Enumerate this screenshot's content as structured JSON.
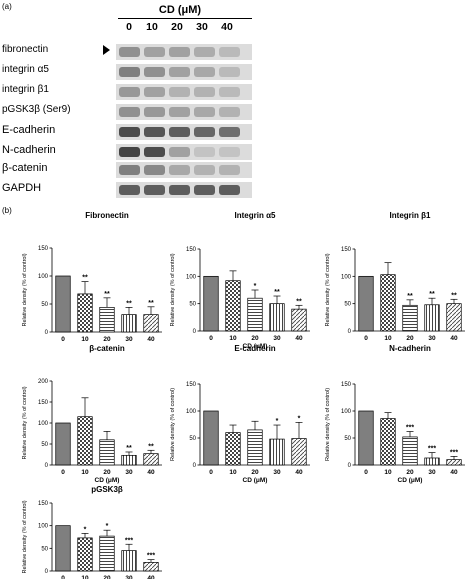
{
  "panel_a_label": "(a)",
  "panel_b_label": "(b)",
  "blot": {
    "title": "CD (μM)",
    "concentrations": [
      "0",
      "10",
      "20",
      "30",
      "40"
    ],
    "rows": [
      {
        "label": "fibronectin",
        "arrow": true,
        "intensities": [
          0.45,
          0.35,
          0.35,
          0.28,
          0.2
        ]
      },
      {
        "label": "integrin α5",
        "arrow": false,
        "intensities": [
          0.55,
          0.45,
          0.35,
          0.3,
          0.2
        ]
      },
      {
        "label": "integrin β1",
        "arrow": false,
        "intensities": [
          0.4,
          0.35,
          0.25,
          0.25,
          0.2
        ]
      },
      {
        "label": "pGSK3β (Ser9)",
        "arrow": false,
        "intensities": [
          0.45,
          0.4,
          0.35,
          0.3,
          0.25
        ]
      },
      {
        "label": "E-cadherin",
        "arrow": false,
        "intensities": [
          0.85,
          0.8,
          0.75,
          0.7,
          0.65
        ]
      },
      {
        "label": "N-cadherin",
        "arrow": false,
        "intensities": [
          0.9,
          0.85,
          0.35,
          0.15,
          0.15
        ]
      },
      {
        "label": "β-catenin",
        "arrow": false,
        "intensities": [
          0.55,
          0.5,
          0.3,
          0.25,
          0.25
        ]
      },
      {
        "label": "GAPDH",
        "arrow": false,
        "intensities": [
          0.75,
          0.75,
          0.75,
          0.75,
          0.75
        ]
      }
    ]
  },
  "chart_data": [
    {
      "type": "bar",
      "title": "Fibronectin",
      "categories": [
        "0",
        "10",
        "20",
        "30",
        "40"
      ],
      "values": [
        100,
        68,
        44,
        31,
        31
      ],
      "errors": [
        0,
        22,
        17,
        13,
        14
      ],
      "significance": [
        "",
        "**",
        "**",
        "**",
        "**"
      ],
      "xlabel": "",
      "ylabel": "Relative density (% of control)",
      "ylim": [
        0,
        150
      ],
      "yticks": [
        0,
        50,
        100,
        150
      ]
    },
    {
      "type": "bar",
      "title": "Integrin α5",
      "categories": [
        "0",
        "10",
        "20",
        "30",
        "40"
      ],
      "values": [
        100,
        92,
        60,
        50,
        40
      ],
      "errors": [
        0,
        18,
        15,
        14,
        7
      ],
      "significance": [
        "",
        "",
        "*",
        "**",
        "**"
      ],
      "xlabel": "CD (μM)",
      "ylabel": "Relative density (% of control)",
      "ylim": [
        0,
        150
      ],
      "yticks": [
        0,
        50,
        100,
        150
      ]
    },
    {
      "type": "bar",
      "title": "Integrin β1",
      "categories": [
        "0",
        "10",
        "20",
        "30",
        "40"
      ],
      "values": [
        100,
        103,
        47,
        48,
        50
      ],
      "errors": [
        0,
        22,
        10,
        12,
        8
      ],
      "significance": [
        "",
        "",
        "**",
        "**",
        "**"
      ],
      "xlabel": "",
      "ylabel": "Relative density (% of control)",
      "ylim": [
        0,
        150
      ],
      "yticks": [
        0,
        50,
        100,
        150
      ]
    },
    {
      "type": "bar",
      "title": "β-catenin",
      "categories": [
        "0",
        "10",
        "20",
        "30",
        "40"
      ],
      "values": [
        100,
        115,
        60,
        23,
        27
      ],
      "errors": [
        0,
        45,
        20,
        8,
        8
      ],
      "significance": [
        "",
        "",
        "",
        "**",
        "**"
      ],
      "xlabel": "CD (μM)",
      "ylabel": "Relative density (% of control)",
      "ylim": [
        0,
        200
      ],
      "yticks": [
        0,
        50,
        100,
        150,
        200
      ]
    },
    {
      "type": "bar",
      "title": "E-cadherin",
      "categories": [
        "0",
        "10",
        "20",
        "30",
        "40"
      ],
      "values": [
        100,
        60,
        65,
        48,
        49
      ],
      "errors": [
        0,
        14,
        16,
        26,
        30
      ],
      "significance": [
        "",
        "",
        "",
        "*",
        "*"
      ],
      "xlabel": "CD (μM)",
      "ylabel": "Relative density (% of control)",
      "ylim": [
        0,
        150
      ],
      "yticks": [
        0,
        50,
        100,
        150
      ]
    },
    {
      "type": "bar",
      "title": "N-cadherin",
      "categories": [
        "0",
        "10",
        "20",
        "30",
        "40"
      ],
      "values": [
        100,
        86,
        52,
        13,
        10
      ],
      "errors": [
        0,
        11,
        10,
        10,
        6
      ],
      "significance": [
        "",
        "",
        "***",
        "***",
        "***"
      ],
      "xlabel": "CD (μM)",
      "ylabel": "Relative density (% of control)",
      "ylim": [
        0,
        150
      ],
      "yticks": [
        0,
        50,
        100,
        150
      ]
    },
    {
      "type": "bar",
      "title": "pGSK3β",
      "categories": [
        "0",
        "10",
        "20",
        "30",
        "40"
      ],
      "values": [
        100,
        73,
        77,
        45,
        19
      ],
      "errors": [
        0,
        10,
        13,
        14,
        6
      ],
      "significance": [
        "",
        "*",
        "*",
        "***",
        "***"
      ],
      "xlabel": "CD (μM)",
      "ylabel": "Relative density (% of control)",
      "ylim": [
        0,
        150
      ],
      "yticks": [
        0,
        50,
        100,
        150
      ]
    }
  ],
  "colors": {
    "bar_0": "#7f7f7f",
    "bar_edge": "#000000"
  }
}
